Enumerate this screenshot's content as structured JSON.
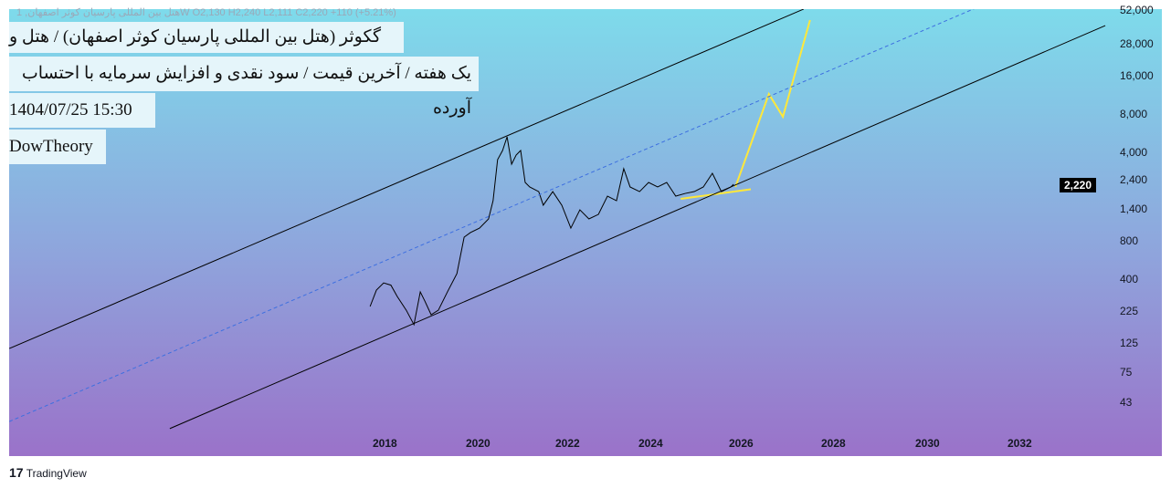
{
  "header": {
    "ohlc": "هتل بین المللی پارسیان کوثر اصفهان, 1W  O2,130  H2,240  L2,111  C2,220  +110 (+5.21%)",
    "title": "گکوثر (هتل بین المللی پارسیان کوثر اصفهان) / هتل و رستوران",
    "subtitle": "یک هفته / آخرین قیمت / سود نقدی و افزایش سرمایه با احتساب آورده",
    "datetime": "1404/07/25 15:30",
    "author": "DowTheory"
  },
  "footer": {
    "brand": "TradingView"
  },
  "chart_data": {
    "type": "line",
    "scale": "log",
    "xlabel": "",
    "ylabel": "",
    "x_ticks": [
      "2018",
      "2020",
      "2022",
      "2024",
      "2026",
      "2028",
      "2030",
      "2032"
    ],
    "y_ticks": [
      "52,000",
      "28,000",
      "16,000",
      "8,000",
      "4,000",
      "2,400",
      "1,400",
      "800",
      "400",
      "225",
      "125",
      "75",
      "43"
    ],
    "last_price": "2,220",
    "colors": {
      "price": "#000000",
      "projection": "#ffe83a",
      "channel": "#000000",
      "mid": "#3d6fe0"
    },
    "series": [
      {
        "name": "price",
        "points": [
          [
            2017.66,
            246
          ],
          [
            2017.8,
            331
          ],
          [
            2017.96,
            377
          ],
          [
            2018.12,
            362
          ],
          [
            2018.26,
            295
          ],
          [
            2018.46,
            230
          ],
          [
            2018.63,
            177
          ],
          [
            2018.77,
            320
          ],
          [
            2018.87,
            272
          ],
          [
            2019.01,
            212
          ],
          [
            2019.17,
            230
          ],
          [
            2019.37,
            320
          ],
          [
            2019.58,
            446
          ],
          [
            2019.74,
            862
          ],
          [
            2019.88,
            937
          ],
          [
            2020.08,
            1016
          ],
          [
            2020.28,
            1200
          ],
          [
            2020.38,
            1668
          ],
          [
            2020.48,
            3505
          ],
          [
            2020.59,
            4134
          ],
          [
            2020.69,
            5295
          ],
          [
            2020.79,
            3227
          ],
          [
            2020.89,
            3805
          ],
          [
            2020.99,
            4134
          ],
          [
            2021.09,
            2320
          ],
          [
            2021.19,
            2138
          ],
          [
            2021.39,
            1966
          ],
          [
            2021.49,
            1537
          ],
          [
            2021.7,
            1966
          ],
          [
            2021.9,
            1537
          ],
          [
            2022.1,
            1016
          ],
          [
            2022.3,
            1413
          ],
          [
            2022.5,
            1200
          ],
          [
            2022.71,
            1302
          ],
          [
            2022.91,
            1812
          ],
          [
            2023.11,
            1668
          ],
          [
            2023.27,
            2973
          ],
          [
            2023.41,
            2138
          ],
          [
            2023.62,
            1966
          ],
          [
            2023.82,
            2320
          ],
          [
            2024.02,
            2138
          ],
          [
            2024.22,
            2320
          ],
          [
            2024.42,
            1812
          ],
          [
            2024.63,
            1902
          ],
          [
            2024.83,
            1966
          ],
          [
            2025.03,
            2138
          ],
          [
            2025.23,
            2737
          ],
          [
            2025.33,
            2320
          ],
          [
            2025.43,
            1966
          ],
          [
            2025.64,
            2138
          ],
          [
            2025.7,
            2246
          ]
        ]
      },
      {
        "name": "projection",
        "points": [
          [
            2025.74,
            2138
          ],
          [
            2026.48,
            11500
          ],
          [
            2026.79,
            7610
          ],
          [
            2027.39,
            43800
          ]
        ]
      },
      {
        "name": "support-triangle",
        "points": [
          [
            2024.53,
            1724
          ],
          [
            2026.08,
            2051
          ]
        ]
      },
      {
        "name": "channel-upper",
        "points": [
          [
            2009.68,
            115
          ],
          [
            2027.25,
            53400
          ]
        ]
      },
      {
        "name": "channel-mid",
        "points": [
          [
            2009.68,
            30.7
          ],
          [
            2031.09,
            55100
          ]
        ]
      },
      {
        "name": "channel-lower",
        "points": [
          [
            2013.23,
            27
          ],
          [
            2033.92,
            39600
          ]
        ]
      }
    ]
  }
}
